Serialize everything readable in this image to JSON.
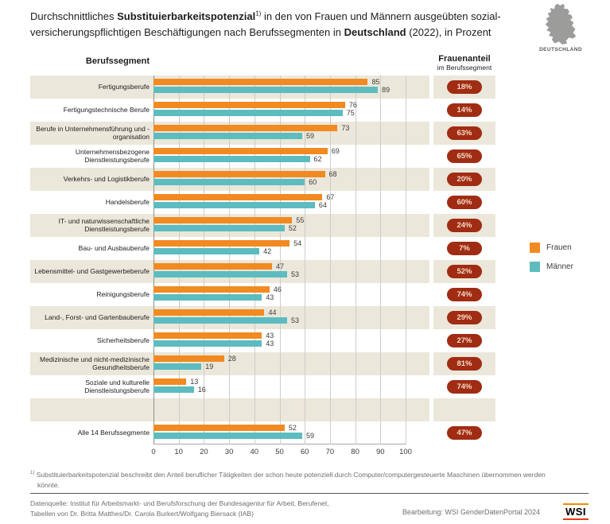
{
  "title": {
    "l1a": "Durchschnittliches ",
    "l1b": "Substituierbarkeitspotenzial",
    "l1sup": "1)",
    "l1c": " in den von Frauen und Männern ausgeübten sozial-",
    "l2a": "versicherungspflichtigen Beschäftigungen nach Berufssegmenten in ",
    "l2b": "Deutschland",
    "l2c": " (2022), in Prozent"
  },
  "map": {
    "label": "DEUTSCHLAND"
  },
  "headers": {
    "segment": "Berufssegment",
    "frauenanteil_line1": "Frauenanteil",
    "frauenanteil_line2": "im Berufssegment"
  },
  "legend": [
    {
      "label": "Frauen",
      "color": "#f18a21"
    },
    {
      "label": "Männer",
      "color": "#5cbcbf"
    }
  ],
  "colors": {
    "frauen": "#f18a21",
    "maenner": "#5cbcbf",
    "badge_bg": "#a02c13",
    "badge_text": "#f7dbc6",
    "row_shade": "#ebe7da"
  },
  "chart_data": {
    "type": "bar",
    "orientation": "horizontal",
    "title": "Durchschnittliches Substituierbarkeitspotenzial in den von Frauen und Männern ausgeübten sozialversicherungspflichtigen Beschäftigungen nach Berufssegmenten in Deutschland (2022), in Prozent",
    "xlabel": "",
    "ylabel": "Berufssegment",
    "xlim": [
      0,
      100
    ],
    "x_ticks": [
      0,
      10,
      20,
      30,
      40,
      50,
      60,
      70,
      80,
      90,
      100
    ],
    "grid": true,
    "legend_position": "right",
    "series_names": [
      "Frauen",
      "Männer"
    ],
    "rows": [
      {
        "label": "Fertigungsberufe",
        "frauen": 85,
        "maenner": 89,
        "frauenanteil": "18%"
      },
      {
        "label": "Fertigungstechnische Berufe",
        "frauen": 76,
        "maenner": 75,
        "frauenanteil": "14%"
      },
      {
        "label": "Berufe in Unternehmensführung und -organisation",
        "frauen": 73,
        "maenner": 59,
        "frauenanteil": "63%"
      },
      {
        "label": "Unternehmensbezogene Dienstleistungsberufe",
        "frauen": 69,
        "maenner": 62,
        "frauenanteil": "65%"
      },
      {
        "label": "Verkehrs- und Logistikberufe",
        "frauen": 68,
        "maenner": 60,
        "frauenanteil": "20%"
      },
      {
        "label": "Handelsberufe",
        "frauen": 67,
        "maenner": 64,
        "frauenanteil": "60%"
      },
      {
        "label": "IT- und naturwissenschaftliche Dienstleistungsberufe",
        "frauen": 55,
        "maenner": 52,
        "frauenanteil": "24%"
      },
      {
        "label": "Bau- und Ausbauberufe",
        "frauen": 54,
        "maenner": 42,
        "frauenanteil": "7%"
      },
      {
        "label": "Lebensmittel- und Gastgewerbeberufe",
        "frauen": 47,
        "maenner": 53,
        "frauenanteil": "52%"
      },
      {
        "label": "Reinigungsberufe",
        "frauen": 46,
        "maenner": 43,
        "frauenanteil": "74%"
      },
      {
        "label": "Land-, Forst- und Gartenbauberufe",
        "frauen": 44,
        "maenner": 53,
        "frauenanteil": "29%"
      },
      {
        "label": "Sicherheitsberufe",
        "frauen": 43,
        "maenner": 43,
        "frauenanteil": "27%"
      },
      {
        "label": "Medizinische und nicht-medizinische Gesundheitsberufe",
        "frauen": 28,
        "maenner": 19,
        "frauenanteil": "81%"
      },
      {
        "label": "Soziale und kulturelle Dienstleistungsberufe",
        "frauen": 13,
        "maenner": 16,
        "frauenanteil": "74%"
      },
      {
        "spacer": true
      },
      {
        "label": "Alle 14 Berufssegmente",
        "frauen": 52,
        "maenner": 59,
        "frauenanteil": "47%"
      }
    ]
  },
  "footnote": {
    "sup": "1)",
    "text": " Substituierbarkeitspotenzial beschreibt den Anteil beruflicher Tätigkeiten der schon heute potenziell durch Computer/computergesteuerte Maschinen übernommen werden könnte."
  },
  "source": {
    "line1": "Datenquelle: Institut für Arbeitsmarkt- und Berufsforschung der Bundesagentur für Arbeit, Berufenet,",
    "line2": "Tabellen von Dr. Britta Matthes/Dr. Carola Burkert/Wolfgang Biersack (IAB)",
    "bearbeitung": "Bearbeitung: WSI GenderDatenPortal 2024",
    "logo": "WSI"
  }
}
